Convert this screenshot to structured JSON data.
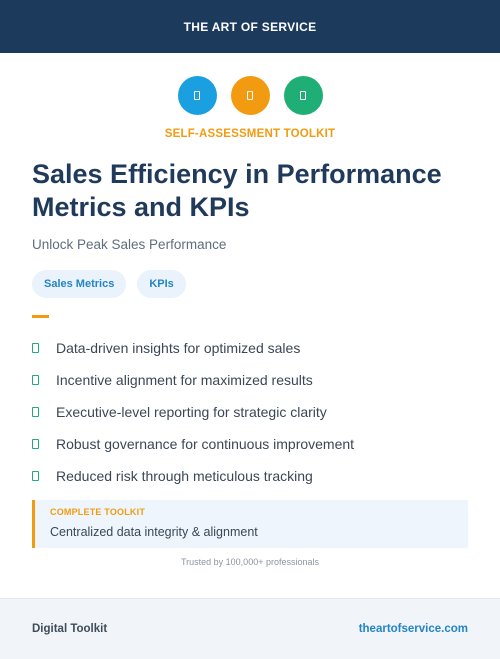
{
  "header": {
    "title": "THE ART OF SERVICE"
  },
  "icons": [
    {
      "name": "document-icon",
      "color": "#1a9fe0"
    },
    {
      "name": "document-icon",
      "color": "#f29b11"
    },
    {
      "name": "document-icon",
      "color": "#1fae76"
    }
  ],
  "kicker": "SELF-ASSESSMENT TOOLKIT",
  "title": "Sales Efficiency in Performance Metrics and KPIs",
  "subtitle": "Unlock Peak Sales Performance",
  "tags": [
    "Sales Metrics",
    "KPIs"
  ],
  "features": [
    "Data-driven insights for optimized sales",
    "Incentive alignment for maximized results",
    "Executive-level reporting for strategic clarity",
    "Robust governance for continuous improvement",
    "Reduced risk through meticulous tracking"
  ],
  "callout": {
    "label": "COMPLETE TOOLKIT",
    "text": "Centralized data integrity & alignment"
  },
  "trust": "Trusted by 100,000+ professionals",
  "footer": {
    "left": "Digital Toolkit",
    "right": "theartofservice.com"
  },
  "colors": {
    "navy": "#1b3a5c",
    "orange": "#f29b11",
    "blue": "#1a9fe0",
    "green": "#1fae76"
  }
}
